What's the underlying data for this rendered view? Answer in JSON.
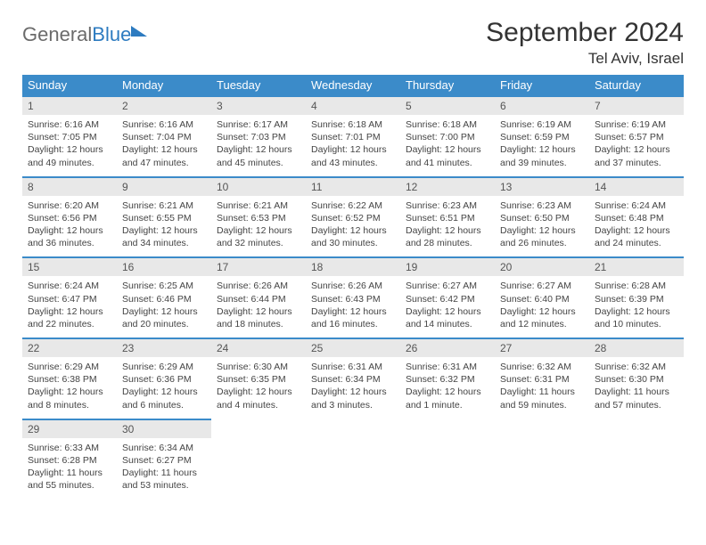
{
  "brand": {
    "part1": "General",
    "part2": "Blue"
  },
  "title": "September 2024",
  "location": "Tel Aviv, Israel",
  "colors": {
    "header_bg": "#3b8bc9",
    "header_text": "#ffffff",
    "daynum_bg": "#e8e8e8",
    "border": "#3b8bc9",
    "brand_gray": "#6b6b6b",
    "brand_blue": "#2d7bc0"
  },
  "typography": {
    "title_fontsize": 30,
    "location_fontsize": 17,
    "dow_fontsize": 13,
    "daynum_fontsize": 12,
    "body_fontsize": 10.5
  },
  "dow": [
    "Sunday",
    "Monday",
    "Tuesday",
    "Wednesday",
    "Thursday",
    "Friday",
    "Saturday"
  ],
  "weeks": [
    [
      {
        "n": "1",
        "sunrise": "6:16 AM",
        "sunset": "7:05 PM",
        "dl": "12 hours and 49 minutes."
      },
      {
        "n": "2",
        "sunrise": "6:16 AM",
        "sunset": "7:04 PM",
        "dl": "12 hours and 47 minutes."
      },
      {
        "n": "3",
        "sunrise": "6:17 AM",
        "sunset": "7:03 PM",
        "dl": "12 hours and 45 minutes."
      },
      {
        "n": "4",
        "sunrise": "6:18 AM",
        "sunset": "7:01 PM",
        "dl": "12 hours and 43 minutes."
      },
      {
        "n": "5",
        "sunrise": "6:18 AM",
        "sunset": "7:00 PM",
        "dl": "12 hours and 41 minutes."
      },
      {
        "n": "6",
        "sunrise": "6:19 AM",
        "sunset": "6:59 PM",
        "dl": "12 hours and 39 minutes."
      },
      {
        "n": "7",
        "sunrise": "6:19 AM",
        "sunset": "6:57 PM",
        "dl": "12 hours and 37 minutes."
      }
    ],
    [
      {
        "n": "8",
        "sunrise": "6:20 AM",
        "sunset": "6:56 PM",
        "dl": "12 hours and 36 minutes."
      },
      {
        "n": "9",
        "sunrise": "6:21 AM",
        "sunset": "6:55 PM",
        "dl": "12 hours and 34 minutes."
      },
      {
        "n": "10",
        "sunrise": "6:21 AM",
        "sunset": "6:53 PM",
        "dl": "12 hours and 32 minutes."
      },
      {
        "n": "11",
        "sunrise": "6:22 AM",
        "sunset": "6:52 PM",
        "dl": "12 hours and 30 minutes."
      },
      {
        "n": "12",
        "sunrise": "6:23 AM",
        "sunset": "6:51 PM",
        "dl": "12 hours and 28 minutes."
      },
      {
        "n": "13",
        "sunrise": "6:23 AM",
        "sunset": "6:50 PM",
        "dl": "12 hours and 26 minutes."
      },
      {
        "n": "14",
        "sunrise": "6:24 AM",
        "sunset": "6:48 PM",
        "dl": "12 hours and 24 minutes."
      }
    ],
    [
      {
        "n": "15",
        "sunrise": "6:24 AM",
        "sunset": "6:47 PM",
        "dl": "12 hours and 22 minutes."
      },
      {
        "n": "16",
        "sunrise": "6:25 AM",
        "sunset": "6:46 PM",
        "dl": "12 hours and 20 minutes."
      },
      {
        "n": "17",
        "sunrise": "6:26 AM",
        "sunset": "6:44 PM",
        "dl": "12 hours and 18 minutes."
      },
      {
        "n": "18",
        "sunrise": "6:26 AM",
        "sunset": "6:43 PM",
        "dl": "12 hours and 16 minutes."
      },
      {
        "n": "19",
        "sunrise": "6:27 AM",
        "sunset": "6:42 PM",
        "dl": "12 hours and 14 minutes."
      },
      {
        "n": "20",
        "sunrise": "6:27 AM",
        "sunset": "6:40 PM",
        "dl": "12 hours and 12 minutes."
      },
      {
        "n": "21",
        "sunrise": "6:28 AM",
        "sunset": "6:39 PM",
        "dl": "12 hours and 10 minutes."
      }
    ],
    [
      {
        "n": "22",
        "sunrise": "6:29 AM",
        "sunset": "6:38 PM",
        "dl": "12 hours and 8 minutes."
      },
      {
        "n": "23",
        "sunrise": "6:29 AM",
        "sunset": "6:36 PM",
        "dl": "12 hours and 6 minutes."
      },
      {
        "n": "24",
        "sunrise": "6:30 AM",
        "sunset": "6:35 PM",
        "dl": "12 hours and 4 minutes."
      },
      {
        "n": "25",
        "sunrise": "6:31 AM",
        "sunset": "6:34 PM",
        "dl": "12 hours and 3 minutes."
      },
      {
        "n": "26",
        "sunrise": "6:31 AM",
        "sunset": "6:32 PM",
        "dl": "12 hours and 1 minute."
      },
      {
        "n": "27",
        "sunrise": "6:32 AM",
        "sunset": "6:31 PM",
        "dl": "11 hours and 59 minutes."
      },
      {
        "n": "28",
        "sunrise": "6:32 AM",
        "sunset": "6:30 PM",
        "dl": "11 hours and 57 minutes."
      }
    ],
    [
      {
        "n": "29",
        "sunrise": "6:33 AM",
        "sunset": "6:28 PM",
        "dl": "11 hours and 55 minutes."
      },
      {
        "n": "30",
        "sunrise": "6:34 AM",
        "sunset": "6:27 PM",
        "dl": "11 hours and 53 minutes."
      },
      null,
      null,
      null,
      null,
      null
    ]
  ],
  "labels": {
    "sunrise": "Sunrise:",
    "sunset": "Sunset:",
    "daylight": "Daylight:"
  }
}
